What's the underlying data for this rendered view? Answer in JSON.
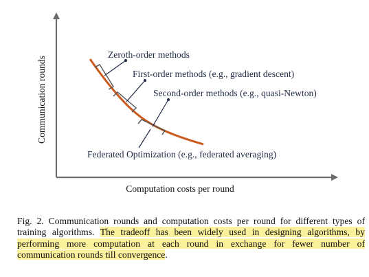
{
  "figure": {
    "x_axis_label": "Computation costs per round",
    "y_axis_label": "Communication rounds",
    "annotations": [
      {
        "id": "zeroth",
        "text": "Zeroth-order methods"
      },
      {
        "id": "first",
        "text": "First-order methods (e.g., gradient descent)"
      },
      {
        "id": "second",
        "text": "Second-order methods  (e.g., quasi-Newton)"
      },
      {
        "id": "federated",
        "text": "Federated Optimization (e.g., federated averaging)"
      }
    ],
    "colors": {
      "curve": "#c95b1c",
      "axes": "#6b6b6b",
      "leader": "#1f2a44",
      "bracket": "#555555",
      "highlight": "#fbf09c"
    }
  },
  "caption": {
    "lead": "Fig. 2.  Communication rounds and computation costs per round for different types of training algorithms. ",
    "highlighted": "The tradeoff has been widely used in designing algorithms, by performing more computation at each round in exchange for fewer number of communication rounds till convergence",
    "tail": "."
  }
}
